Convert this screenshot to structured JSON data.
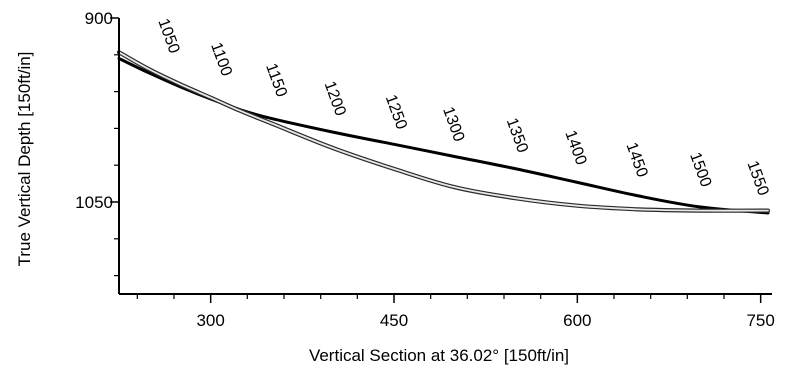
{
  "chart_data": {
    "type": "line",
    "title": "",
    "xlabel": "Vertical Section at 36.02° [150ft/in]",
    "ylabel": "True Vertical Depth [150ft/in]",
    "xlim": [
      225,
      756
    ],
    "ylim": [
      900,
      1125
    ],
    "y_inverted": true,
    "grid": false,
    "x_ticks": [
      300,
      450,
      600,
      750
    ],
    "y_ticks": [
      900,
      1050
    ],
    "x_tick_labels": [
      "300",
      "450",
      "600",
      "750"
    ],
    "y_tick_labels": [
      "900",
      "1050"
    ],
    "series": [
      {
        "style": "solid-dark",
        "x": [
          225,
          250,
          275,
          300,
          325,
          350,
          400,
          450,
          500,
          550,
          600,
          650,
          700,
          756
        ],
        "y": [
          933,
          945,
          956,
          966,
          975,
          982,
          993,
          1003,
          1013,
          1023,
          1034,
          1045,
          1054,
          1059
        ]
      },
      {
        "style": "double-outline",
        "x": [
          225,
          250,
          275,
          300,
          325,
          350,
          400,
          450,
          500,
          550,
          600,
          650,
          700,
          756
        ],
        "y": [
          928,
          942,
          954,
          965,
          976,
          986,
          1006,
          1023,
          1038,
          1047,
          1053,
          1056,
          1057,
          1057
        ]
      }
    ],
    "measured_depth_labels": [
      {
        "text": "1050",
        "x": 262,
        "y": 916
      },
      {
        "text": "1100",
        "x": 305,
        "y": 935
      },
      {
        "text": "1150",
        "x": 350,
        "y": 952
      },
      {
        "text": "1200",
        "x": 398,
        "y": 967
      },
      {
        "text": "1250",
        "x": 448,
        "y": 978
      },
      {
        "text": "1300",
        "x": 495,
        "y": 988
      },
      {
        "text": "1350",
        "x": 547,
        "y": 997
      },
      {
        "text": "1400",
        "x": 595,
        "y": 1007
      },
      {
        "text": "1450",
        "x": 645,
        "y": 1017
      },
      {
        "text": "1500",
        "x": 697,
        "y": 1025
      },
      {
        "text": "1550",
        "x": 744,
        "y": 1032
      }
    ]
  }
}
